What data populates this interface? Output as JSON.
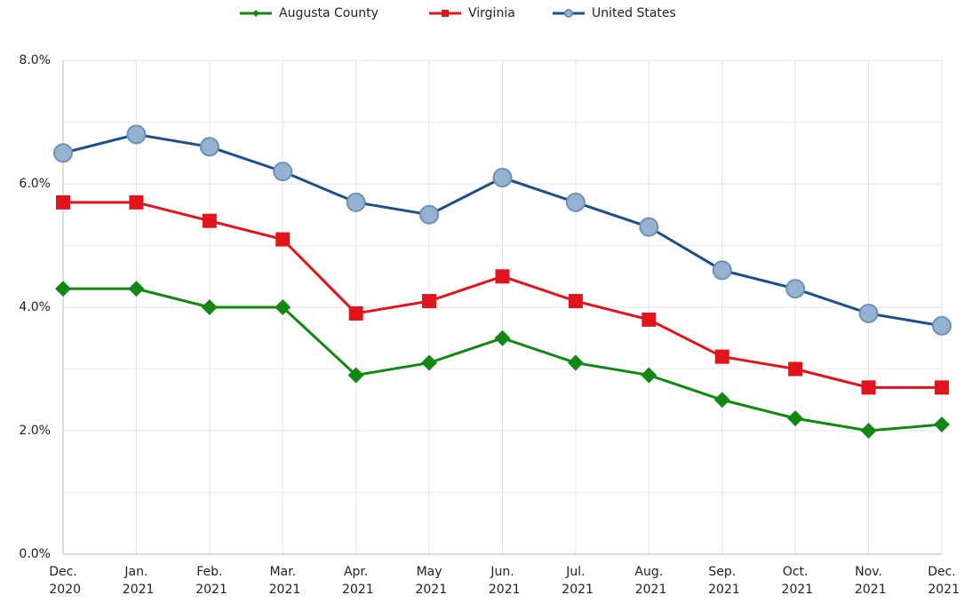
{
  "chart_data": {
    "type": "line",
    "categories": [
      "Dec. 2020",
      "Jan. 2021",
      "Feb. 2021",
      "Mar. 2021",
      "Apr. 2021",
      "May 2021",
      "Jun. 2021",
      "Jul. 2021",
      "Aug. 2021",
      "Sep. 2021",
      "Oct. 2021",
      "Nov. 2021",
      "Dec. 2021"
    ],
    "series": [
      {
        "name": "Augusta County",
        "color": "#128712",
        "marker": "diamond",
        "values": [
          4.3,
          4.3,
          4.0,
          4.0,
          2.9,
          3.1,
          3.5,
          3.1,
          2.9,
          2.5,
          2.2,
          2.0,
          2.1
        ]
      },
      {
        "name": "Virginia",
        "color": "#e0141c",
        "marker": "square",
        "values": [
          5.7,
          5.7,
          5.4,
          5.1,
          3.9,
          4.1,
          4.5,
          4.1,
          3.8,
          3.2,
          3.0,
          2.7,
          2.7
        ]
      },
      {
        "name": "United States",
        "color": "#1c4f85",
        "marker": "circle",
        "values": [
          6.5,
          6.8,
          6.6,
          6.2,
          5.7,
          5.5,
          6.1,
          5.7,
          5.3,
          4.6,
          4.3,
          3.9,
          3.7
        ]
      }
    ],
    "ylim": [
      0,
      8
    ],
    "yticks": [
      {
        "value": 0,
        "label": "0.0%"
      },
      {
        "value": 2,
        "label": "2.0%"
      },
      {
        "value": 4,
        "label": "4.0%"
      },
      {
        "value": 6,
        "label": "6.0%"
      },
      {
        "value": 8,
        "label": "8.0%"
      }
    ],
    "yminorticks": [
      1,
      3,
      5,
      7
    ],
    "grid": true,
    "legend": "top"
  }
}
